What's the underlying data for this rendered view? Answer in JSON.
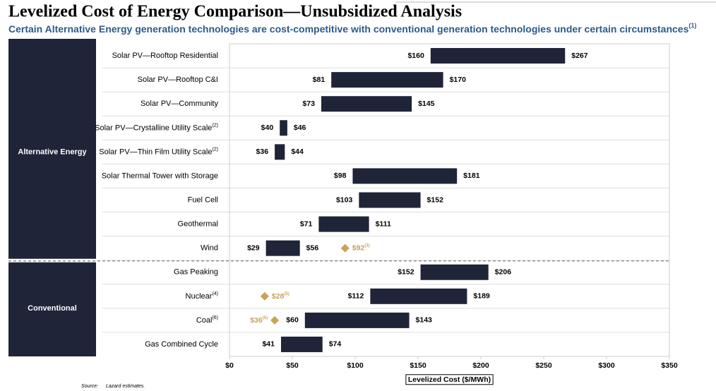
{
  "chart_data": {
    "type": "floating_bar",
    "title": "Levelized Cost of Energy Comparison—Unsubsidized Analysis",
    "subtitle": "Certain Alternative Energy generation technologies are cost-competitive with conventional generation technologies under certain circumstances",
    "subtitle_note": "(1)",
    "categories": [
      "Solar PV—Rooftop Residential",
      "Solar PV—Rooftop C&I",
      "Solar PV—Community",
      "Solar PV—Crystalline Utility Scale",
      "Solar PV—Thin Film Utility Scale",
      "Solar Thermal Tower with Storage",
      "Fuel Cell",
      "Geothermal",
      "Wind",
      "Gas Peaking",
      "Nuclear",
      "Coal",
      "Gas Combined Cycle"
    ],
    "category_notes": [
      null,
      null,
      null,
      "(2)",
      "(2)",
      null,
      null,
      null,
      null,
      null,
      "(4)",
      "(6)",
      null
    ],
    "groups": [
      {
        "label": "Alternative Energy",
        "size": 9
      },
      {
        "label": "Conventional",
        "size": 4
      }
    ],
    "series": [
      {
        "values": [
          160,
          81,
          73,
          40,
          36,
          98,
          103,
          71,
          29,
          152,
          112,
          60,
          41
        ],
        "value_labels": [
          "$160",
          "$81",
          "$73",
          "$40",
          "$36",
          "$98",
          "$103",
          "$71",
          "$29",
          "$152",
          "$112",
          "$60",
          "$41"
        ]
      },
      {
        "values": [
          267,
          170,
          145,
          46,
          44,
          181,
          152,
          111,
          56,
          206,
          189,
          143,
          74
        ],
        "value_labels": [
          "$267",
          "$170",
          "$145",
          "$46",
          "$44",
          "$181",
          "$152",
          "$111",
          "$56",
          "$206",
          "$189",
          "$143",
          "$74"
        ]
      }
    ],
    "color": "#1f2438",
    "marker_values": [
      null,
      null,
      null,
      null,
      null,
      null,
      null,
      null,
      92,
      null,
      28,
      36,
      null
    ],
    "marker_labels": [
      null,
      null,
      null,
      null,
      null,
      null,
      null,
      null,
      "$92",
      null,
      "$28",
      "$36",
      null
    ],
    "marker_notes": [
      null,
      null,
      null,
      null,
      null,
      null,
      null,
      null,
      "(3)",
      null,
      "(5)",
      "(5)",
      null
    ],
    "marker_color": "#c9a25a",
    "xlim": [
      0,
      350
    ],
    "xticks": [
      {
        "value": 0,
        "label": "$0"
      },
      {
        "value": 50,
        "label": "$50"
      },
      {
        "value": 100,
        "label": "$100"
      },
      {
        "value": 150,
        "label": "$150"
      },
      {
        "value": 200,
        "label": "$200"
      },
      {
        "value": 250,
        "label": "$250"
      },
      {
        "value": 300,
        "label": "$300"
      },
      {
        "value": 350,
        "label": "$350"
      }
    ],
    "xlabel": "Levelized Cost ($/MWh)",
    "source_label": "Source:",
    "source": "Lazard estimates."
  }
}
